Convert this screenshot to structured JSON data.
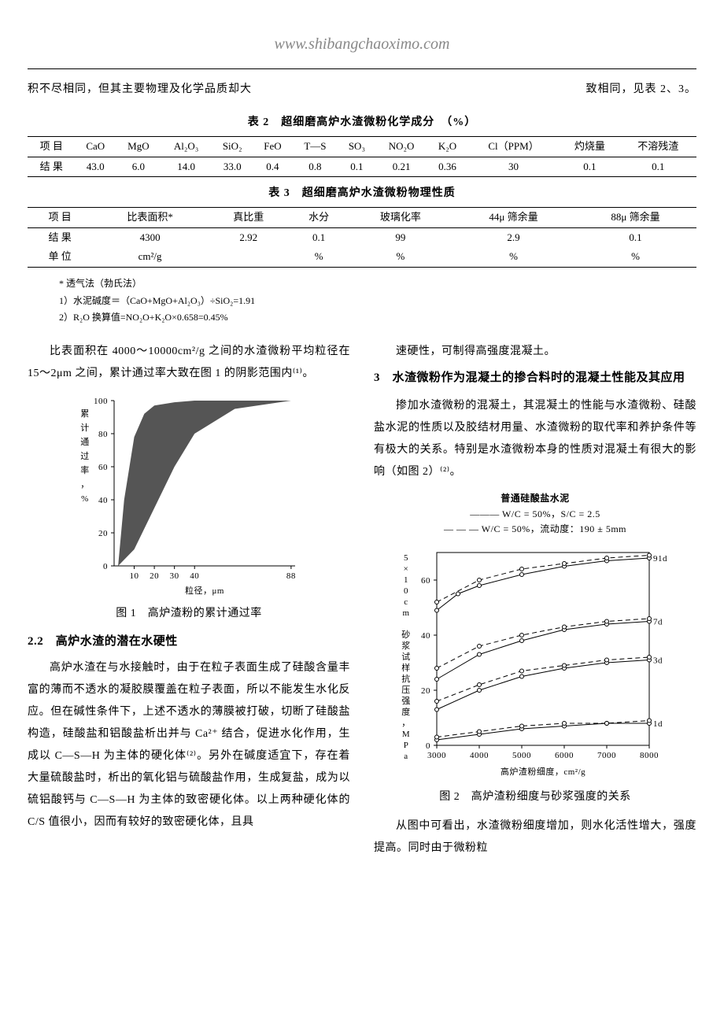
{
  "header": {
    "url": "www.shibangchaoximo.com",
    "intro_left": "积不尽相同，但其主要物理及化学品质却大",
    "intro_right": "致相同，见表 2、3。"
  },
  "table2": {
    "title": "表 2　超细磨高炉水渣微粉化学成分　（%）",
    "columns": [
      "项 目",
      "CaO",
      "MgO",
      "Al₂O₃",
      "SiO₂",
      "FeO",
      "T—S",
      "SO₃",
      "NO₂O",
      "K₂O",
      "Cl（PPM）",
      "灼烧量",
      "不溶残渣"
    ],
    "row_label": "结 果",
    "values": [
      "43.0",
      "6.0",
      "14.0",
      "33.0",
      "0.4",
      "0.8",
      "0.1",
      "0.21",
      "0.36",
      "30",
      "0.1",
      "0.1"
    ]
  },
  "table3": {
    "title": "表 3　超细磨高炉水渣微粉物理性质",
    "columns": [
      "项 目",
      "比表面积*",
      "真比重",
      "水分",
      "玻璃化率",
      "44μ 筛余量",
      "88μ 筛余量"
    ],
    "row1_label": "结 果",
    "row1_values": [
      "4300",
      "2.92",
      "0.1",
      "99",
      "2.9",
      "0.1"
    ],
    "row2_label": "单 位",
    "row2_values": [
      "cm²/g",
      "",
      "%",
      "%",
      "%",
      "%"
    ]
  },
  "notes": {
    "n0": "* 透气法（勃氏法）",
    "n1": "1）水泥碱度＝（CaO+MgO+Al₂O₃）÷SiO₂=1.91",
    "n2": "2）R₂O 换算值=NO₂O+K₂O×0.658=0.45%"
  },
  "left_col": {
    "para1": "比表面积在 4000～10000cm²/g 之间的水渣微粉平均粒径在 15～2μm 之间，累计通过率大致在图 1 的阴影范围内⁽¹⁾。",
    "fig1": {
      "caption": "图 1　高炉渣粉的累计通过率",
      "xlabel": "粒径，μm",
      "ylabel": "累计通过率，%",
      "xlim": [
        0,
        90
      ],
      "ylim": [
        0,
        100
      ],
      "xticks": [
        10,
        20,
        30,
        40,
        88
      ],
      "yticks": [
        0,
        20,
        40,
        60,
        80,
        100
      ],
      "shade_upper": [
        [
          2,
          0
        ],
        [
          5,
          40
        ],
        [
          10,
          78
        ],
        [
          15,
          92
        ],
        [
          20,
          97
        ],
        [
          30,
          99
        ],
        [
          40,
          100
        ],
        [
          88,
          100
        ]
      ],
      "shade_lower": [
        [
          2,
          0
        ],
        [
          10,
          10
        ],
        [
          20,
          35
        ],
        [
          30,
          60
        ],
        [
          40,
          80
        ],
        [
          60,
          95
        ],
        [
          88,
          100
        ]
      ],
      "shade_color": "#555555",
      "axis_color": "#000000"
    },
    "h22": "2.2　高炉水渣的潜在水硬性",
    "para2": "高炉水渣在与水接触时，由于在粒子表面生成了硅酸含量丰富的薄而不透水的凝胶膜覆盖在粒子表面，所以不能发生水化反应。但在碱性条件下，上述不透水的薄膜被打破，切断了硅酸盐构造，硅酸盐和铝酸盐析出并与 Ca²⁺ 结合，促进水化作用，生成以 C—S—H 为主体的硬化体⁽²⁾。另外在碱度适宜下，存在着大量硫酸盐时，析出的氧化铝与硫酸盐作用，生成复盐，成为以硫铝酸钙与 C—S—H 为主体的致密硬化体。以上两种硬化体的 C/S 值很小，因而有较好的致密硬化体，且具"
  },
  "right_col": {
    "para1": "速硬性，可制得高强度混凝土。",
    "h3": "3　水渣微粉作为混凝土的掺合料时的混凝土性能及其应用",
    "para2": "掺加水渣微粉的混凝土，其混凝土的性能与水渣微粉、硅酸盐水泥的性质以及胶结材用量、水渣微粉的取代率和养护条件等有极大的关系。特别是水渣微粉本身的性质对混凝土有很大的影响（如图 2）⁽²⁾。",
    "fig2": {
      "caption": "图 2　高炉渣粉细度与砂浆强度的关系",
      "legend_title": "普通硅酸盐水泥",
      "legend1": "——— W/C = 50%，S/C = 2.5",
      "legend2": "— — — W/C = 50%，流动度：190 ± 5mm",
      "xlabel": "高炉渣粉细度，cm²/g",
      "ylabel": "5×10cm 砂浆试样抗压强度，MPa",
      "xlim": [
        3000,
        8000
      ],
      "ylim": [
        0,
        70
      ],
      "xticks": [
        3000,
        4000,
        5000,
        6000,
        7000,
        8000
      ],
      "yticks": [
        0,
        20,
        40,
        60
      ],
      "labels_right": [
        "91d",
        "7d",
        "3d",
        "1d"
      ],
      "series": {
        "s91_solid": [
          [
            3000,
            49
          ],
          [
            3500,
            55
          ],
          [
            4000,
            58
          ],
          [
            5000,
            62
          ],
          [
            6000,
            65
          ],
          [
            7000,
            67
          ],
          [
            8000,
            68
          ]
        ],
        "s91_dash": [
          [
            3000,
            52
          ],
          [
            4000,
            60
          ],
          [
            5000,
            64
          ],
          [
            6000,
            66
          ],
          [
            7000,
            68
          ],
          [
            8000,
            69
          ]
        ],
        "s7_solid": [
          [
            3000,
            24
          ],
          [
            4000,
            33
          ],
          [
            5000,
            38
          ],
          [
            6000,
            42
          ],
          [
            7000,
            44
          ],
          [
            8000,
            45
          ]
        ],
        "s7_dash": [
          [
            3000,
            28
          ],
          [
            4000,
            36
          ],
          [
            5000,
            40
          ],
          [
            6000,
            43
          ],
          [
            7000,
            45
          ],
          [
            8000,
            46
          ]
        ],
        "s3_solid": [
          [
            3000,
            13
          ],
          [
            4000,
            20
          ],
          [
            5000,
            25
          ],
          [
            6000,
            28
          ],
          [
            7000,
            30
          ],
          [
            8000,
            31
          ]
        ],
        "s3_dash": [
          [
            3000,
            16
          ],
          [
            4000,
            22
          ],
          [
            5000,
            27
          ],
          [
            6000,
            29
          ],
          [
            7000,
            31
          ],
          [
            8000,
            32
          ]
        ],
        "s1_solid": [
          [
            3000,
            2
          ],
          [
            4000,
            4
          ],
          [
            5000,
            6
          ],
          [
            6000,
            7
          ],
          [
            7000,
            8
          ],
          [
            8000,
            8
          ]
        ],
        "s1_dash": [
          [
            3000,
            3
          ],
          [
            4000,
            5
          ],
          [
            5000,
            7
          ],
          [
            6000,
            8
          ],
          [
            7000,
            8
          ],
          [
            8000,
            9
          ]
        ]
      },
      "line_color": "#000000"
    },
    "para3": "从图中可看出，水渣微粉细度增加，则水化活性增大，强度提高。同时由于微粉粒"
  }
}
